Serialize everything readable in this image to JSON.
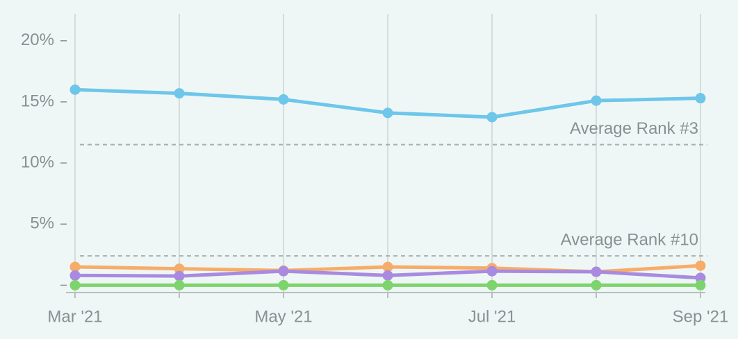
{
  "chart_data": {
    "type": "line",
    "categories": [
      "Mar '21",
      null,
      "May '21",
      null,
      "Jul '21",
      null,
      "Sep '21"
    ],
    "series": [
      {
        "color": "#6ec6ea",
        "values": [
          16.0,
          15.7,
          15.2,
          14.1,
          13.75,
          15.1,
          15.3
        ]
      },
      {
        "color": "#f6ad6a",
        "values": [
          1.5,
          1.35,
          1.2,
          1.5,
          1.4,
          1.1,
          1.6
        ]
      },
      {
        "color": "#a88be0",
        "values": [
          0.8,
          0.75,
          1.15,
          0.8,
          1.15,
          1.1,
          0.6
        ]
      },
      {
        "color": "#7ed46c",
        "values": [
          0,
          0,
          0,
          0,
          0,
          0,
          0
        ]
      }
    ],
    "reference_lines": [
      {
        "label": "Average Rank #3",
        "value": 11.5
      },
      {
        "label": "Average Rank #10",
        "value": 2.4
      }
    ],
    "ylim": [
      -0.6,
      22.2
    ],
    "yticks": [
      {
        "value": 0
      },
      {
        "value": 5,
        "label": "5%"
      },
      {
        "value": 10,
        "label": "10%"
      },
      {
        "value": 15,
        "label": "15%"
      },
      {
        "value": 20,
        "label": "20%"
      }
    ],
    "grid": true
  }
}
